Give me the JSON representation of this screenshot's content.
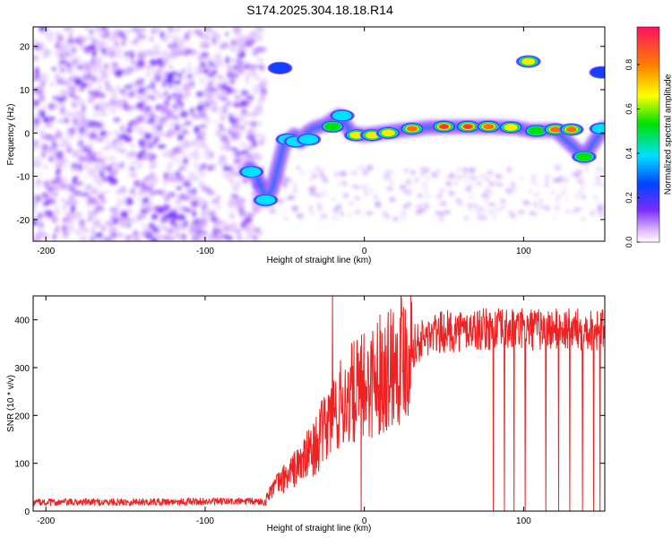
{
  "title": "S174.2025.304.18.18.R14",
  "colors": {
    "snr_line": "#ee2222",
    "axis": "#000000"
  },
  "chart_data": [
    {
      "type": "heatmap",
      "xlabel": "Height of straight line (km)",
      "ylabel": "Frequency (Hz)",
      "xlim": [
        -208,
        151
      ],
      "ylim": [
        -25,
        24.5
      ],
      "xticks": [
        -200,
        -100,
        0,
        100
      ],
      "yticks": [
        -20,
        -10,
        0,
        10,
        20
      ],
      "colorbar": {
        "label": "Normalized spectral amplitude",
        "range": [
          0,
          0.97
        ],
        "ticks": [
          0.0,
          0.2,
          0.4,
          0.6,
          0.8
        ]
      },
      "ridge": [
        [
          -72,
          -8
        ],
        [
          -68,
          -10
        ],
        [
          -64,
          -13
        ],
        [
          -62,
          -15.5
        ],
        [
          -58,
          -13
        ],
        [
          -50,
          -2
        ],
        [
          -47,
          -1.5
        ],
        [
          -44,
          -0.5
        ],
        [
          -40,
          -2
        ],
        [
          -36,
          0
        ],
        [
          -32,
          1
        ],
        [
          -28,
          1.5
        ],
        [
          -24,
          2
        ],
        [
          -20,
          3
        ],
        [
          -16,
          4
        ],
        [
          -12,
          2
        ],
        [
          -8,
          0
        ],
        [
          0,
          -0.5
        ],
        [
          10,
          0
        ],
        [
          20,
          0.5
        ],
        [
          30,
          0.8
        ],
        [
          40,
          1.3
        ],
        [
          60,
          1.4
        ],
        [
          80,
          1.4
        ],
        [
          95,
          1.2
        ],
        [
          105,
          0.5
        ],
        [
          120,
          0.6
        ],
        [
          138,
          -5.5
        ],
        [
          150,
          1
        ]
      ],
      "features": [
        {
          "x": -71,
          "f": -9,
          "amp": 0.5
        },
        {
          "x": -62,
          "f": -15.5,
          "amp": 0.45
        },
        {
          "x": -53,
          "f": 15,
          "amp": 0.3
        },
        {
          "x": -48,
          "f": -1.5,
          "amp": 0.45
        },
        {
          "x": -43,
          "f": -2,
          "amp": 0.4
        },
        {
          "x": -35,
          "f": -1.5,
          "amp": 0.5
        },
        {
          "x": -20,
          "f": 1.5,
          "amp": 0.6
        },
        {
          "x": -14,
          "f": 4,
          "amp": 0.5
        },
        {
          "x": -5,
          "f": -0.5,
          "amp": 0.7
        },
        {
          "x": 5,
          "f": -0.5,
          "amp": 0.75
        },
        {
          "x": 15,
          "f": 0,
          "amp": 0.7
        },
        {
          "x": 30,
          "f": 1,
          "amp": 0.85
        },
        {
          "x": 50,
          "f": 1.5,
          "amp": 0.95
        },
        {
          "x": 65,
          "f": 1.5,
          "amp": 0.95
        },
        {
          "x": 78,
          "f": 1.5,
          "amp": 0.85
        },
        {
          "x": 92,
          "f": 1.3,
          "amp": 0.75
        },
        {
          "x": 103,
          "f": 16.5,
          "amp": 0.8
        },
        {
          "x": 108,
          "f": 0.5,
          "amp": 0.6
        },
        {
          "x": 120,
          "f": 0.8,
          "amp": 0.9
        },
        {
          "x": 130,
          "f": 0.8,
          "amp": 0.85
        },
        {
          "x": 138,
          "f": -5.5,
          "amp": 0.6
        },
        {
          "x": 149,
          "f": 1,
          "amp": 0.5
        },
        {
          "x": 149,
          "f": 14,
          "amp": 0.3
        }
      ]
    },
    {
      "type": "line",
      "xlabel": "Height of straight line (km)",
      "ylabel": "SNR (10 * v/v)",
      "xlim": [
        -208,
        151
      ],
      "ylim": [
        0,
        450
      ],
      "xticks": [
        -200,
        -100,
        0,
        100
      ],
      "yticks": [
        0,
        100,
        200,
        300,
        400
      ],
      "trend": [
        [
          -208,
          18
        ],
        [
          -100,
          20
        ],
        [
          -62,
          20
        ],
        [
          -60,
          40
        ],
        [
          -50,
          70
        ],
        [
          -40,
          100
        ],
        [
          -30,
          140
        ],
        [
          -20,
          200
        ],
        [
          -10,
          240
        ],
        [
          0,
          260
        ],
        [
          10,
          290
        ],
        [
          20,
          320
        ],
        [
          30,
          345
        ],
        [
          40,
          365
        ],
        [
          50,
          375
        ],
        [
          70,
          380
        ],
        [
          151,
          380
        ]
      ],
      "spikes": [
        {
          "x": -20,
          "y": 450
        },
        {
          "x": -2,
          "y": 0
        },
        {
          "x": 81,
          "y": 0
        },
        {
          "x": 88,
          "y": 0
        },
        {
          "x": 94,
          "y": 0
        },
        {
          "x": 101,
          "y": 0
        },
        {
          "x": 114,
          "y": 0
        },
        {
          "x": 122,
          "y": 0
        },
        {
          "x": 129,
          "y": 0
        },
        {
          "x": 137,
          "y": 0
        },
        {
          "x": 144,
          "y": 0
        },
        {
          "x": 148,
          "y": 0
        }
      ]
    }
  ]
}
